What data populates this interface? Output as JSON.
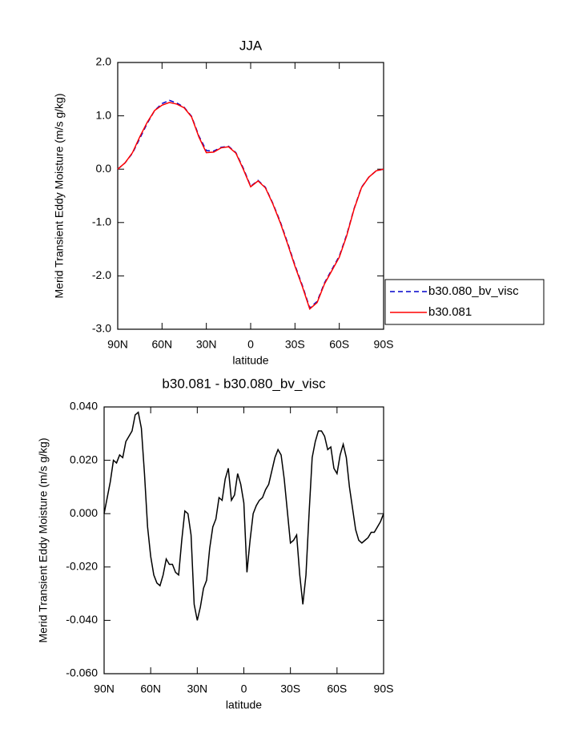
{
  "chart_data": [
    {
      "type": "line",
      "title": "JJA",
      "xlabel": "latitude",
      "ylabel": "Merid Transient Eddy Moisture (m/s g/kg)",
      "x": [
        90,
        85,
        80,
        75,
        70,
        65,
        60,
        55,
        50,
        45,
        40,
        35,
        30,
        25,
        20,
        15,
        10,
        5,
        0,
        -5,
        -10,
        -15,
        -20,
        -25,
        -30,
        -35,
        -40,
        -45,
        -50,
        -55,
        -60,
        -65,
        -70,
        -75,
        -80,
        -85,
        -90
      ],
      "series": [
        {
          "name": "b30.080_bv_visc",
          "color": "#0000cc",
          "line_style": "dashed",
          "values": [
            0.0,
            0.12,
            0.3,
            0.58,
            0.86,
            1.1,
            1.23,
            1.29,
            1.24,
            1.16,
            0.99,
            0.62,
            0.35,
            0.34,
            0.41,
            0.43,
            0.31,
            0.02,
            -0.32,
            -0.21,
            -0.34,
            -0.64,
            -0.98,
            -1.38,
            -1.8,
            -2.18,
            -2.6,
            -2.48,
            -2.13,
            -1.88,
            -1.63,
            -1.23,
            -0.74,
            -0.34,
            -0.15,
            -0.03,
            0.0
          ]
        },
        {
          "name": "b30.081",
          "color": "#ff0000",
          "line_style": "solid",
          "values": [
            0.0,
            0.12,
            0.31,
            0.61,
            0.88,
            1.1,
            1.2,
            1.25,
            1.22,
            1.15,
            0.98,
            0.6,
            0.31,
            0.32,
            0.4,
            0.42,
            0.3,
            0.0,
            -0.33,
            -0.22,
            -0.35,
            -0.65,
            -1.0,
            -1.4,
            -1.82,
            -2.2,
            -2.62,
            -2.5,
            -2.15,
            -1.9,
            -1.65,
            -1.25,
            -0.75,
            -0.35,
            -0.15,
            -0.03,
            0.0
          ]
        }
      ],
      "xlim": [
        90,
        -90
      ],
      "xticks": [
        {
          "value": 90,
          "label": "90N"
        },
        {
          "value": 60,
          "label": "60N"
        },
        {
          "value": 30,
          "label": "30N"
        },
        0,
        {
          "value": -30,
          "label": "30S"
        },
        {
          "value": -60,
          "label": "60S"
        },
        {
          "value": -90,
          "label": "90S"
        }
      ],
      "ylim": [
        -3,
        2
      ],
      "yticks": [
        {
          "value": 2,
          "label": "2.0"
        },
        {
          "value": 1,
          "label": "1.0"
        },
        {
          "value": 0,
          "label": "0.0"
        },
        {
          "value": -1,
          "label": "-1.0"
        },
        {
          "value": -2,
          "label": "-2.0"
        },
        {
          "value": -3,
          "label": "-3.0"
        }
      ],
      "legend": "outside right"
    },
    {
      "type": "line",
      "title": "b30.081 - b30.080_bv_visc",
      "xlabel": "latitude",
      "ylabel": "Merid Transient Eddy Moisture (m/s g/kg)",
      "x": [
        90,
        88,
        86,
        84,
        82,
        80,
        78,
        76,
        74,
        72,
        70,
        68,
        66,
        64,
        62,
        60,
        58,
        56,
        54,
        52,
        50,
        48,
        46,
        44,
        42,
        40,
        38,
        36,
        34,
        32,
        30,
        28,
        26,
        24,
        22,
        20,
        18,
        16,
        14,
        12,
        10,
        8,
        6,
        4,
        2,
        0,
        -2,
        -4,
        -6,
        -8,
        -10,
        -12,
        -14,
        -16,
        -18,
        -20,
        -22,
        -24,
        -26,
        -28,
        -30,
        -32,
        -34,
        -36,
        -38,
        -40,
        -42,
        -44,
        -46,
        -48,
        -50,
        -52,
        -54,
        -56,
        -58,
        -60,
        -62,
        -64,
        -66,
        -68,
        -70,
        -72,
        -74,
        -76,
        -78,
        -80,
        -82,
        -84,
        -86,
        -88,
        -90
      ],
      "series": [
        {
          "color": "#000000",
          "values": [
            0.0,
            0.006,
            0.012,
            0.02,
            0.019,
            0.022,
            0.021,
            0.027,
            0.029,
            0.031,
            0.037,
            0.038,
            0.032,
            0.015,
            -0.005,
            -0.016,
            -0.023,
            -0.026,
            -0.027,
            -0.023,
            -0.017,
            -0.019,
            -0.019,
            -0.022,
            -0.023,
            -0.01,
            0.001,
            0.0,
            -0.008,
            -0.034,
            -0.04,
            -0.035,
            -0.028,
            -0.025,
            -0.013,
            -0.005,
            -0.002,
            0.006,
            0.005,
            0.013,
            0.017,
            0.005,
            0.007,
            0.015,
            0.011,
            0.004,
            -0.022,
            -0.01,
            0.0,
            0.003,
            0.005,
            0.006,
            0.009,
            0.011,
            0.016,
            0.021,
            0.024,
            0.022,
            0.013,
            0.001,
            -0.011,
            -0.01,
            -0.008,
            -0.023,
            -0.034,
            -0.023,
            0.0,
            0.021,
            0.027,
            0.031,
            0.031,
            0.029,
            0.024,
            0.025,
            0.017,
            0.015,
            0.022,
            0.026,
            0.021,
            0.01,
            0.002,
            -0.006,
            -0.01,
            -0.011,
            -0.01,
            -0.009,
            -0.007,
            -0.007,
            -0.005,
            -0.003,
            0.0
          ]
        }
      ],
      "xlim": [
        90,
        -90
      ],
      "xticks": [
        {
          "value": 90,
          "label": "90N"
        },
        {
          "value": 60,
          "label": "60N"
        },
        {
          "value": 30,
          "label": "30N"
        },
        0,
        {
          "value": -30,
          "label": "30S"
        },
        {
          "value": -60,
          "label": "60S"
        },
        {
          "value": -90,
          "label": "90S"
        }
      ],
      "ylim": [
        -0.06,
        0.04
      ],
      "yticks": [
        {
          "value": 0.04,
          "label": "0.040"
        },
        {
          "value": 0.02,
          "label": "0.020"
        },
        {
          "value": 0,
          "label": "0.000"
        },
        {
          "value": -0.02,
          "label": "-0.020"
        },
        {
          "value": -0.04,
          "label": "-0.040"
        },
        {
          "value": -0.06,
          "label": "-0.060"
        }
      ]
    }
  ]
}
